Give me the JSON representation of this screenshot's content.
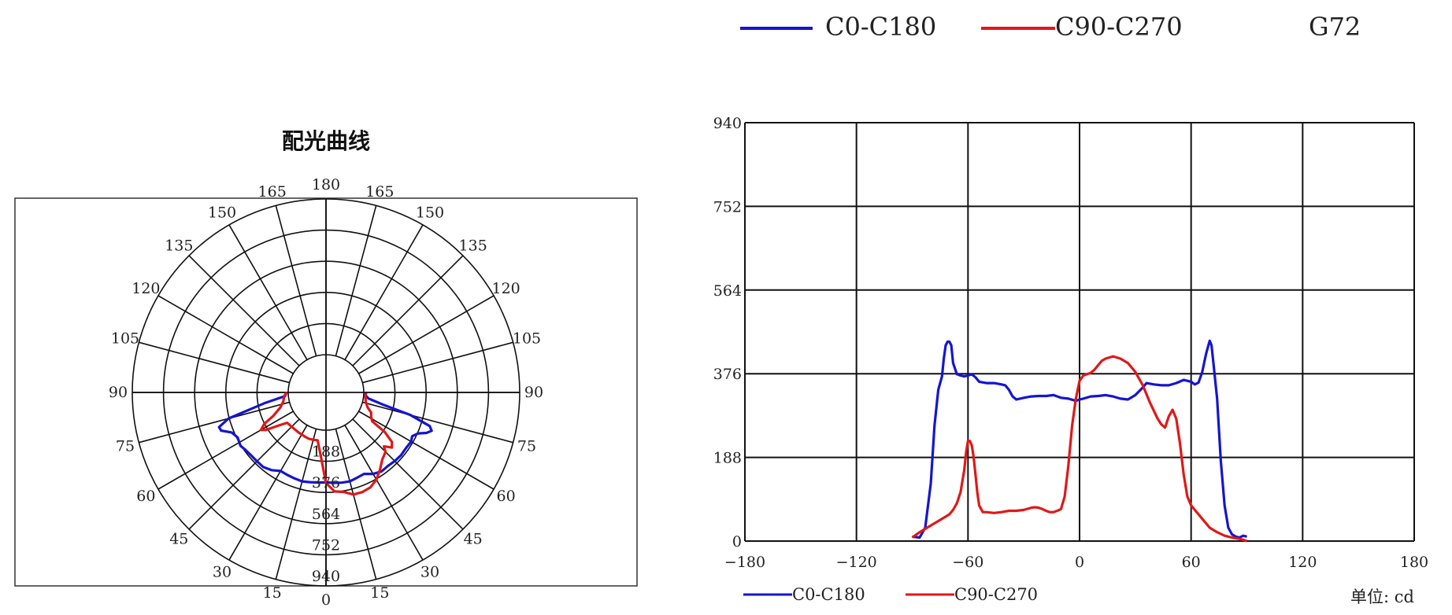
{
  "top_legend": {
    "entries": [
      {
        "label": "C0-C180",
        "color": "#1515d0"
      },
      {
        "label": "C90-C270",
        "color": "#e01818"
      }
    ],
    "model": "G72"
  },
  "unit_label": "单位: cd",
  "chart_data": [
    {
      "type": "polar",
      "title": "配光曲线",
      "angle_ticks": [
        0,
        15,
        30,
        45,
        60,
        75,
        90,
        105,
        120,
        135,
        150,
        165,
        180
      ],
      "radial_ticks": [
        188,
        376,
        564,
        752,
        940
      ],
      "rmax": 940,
      "series": [
        {
          "name": "C0-C180",
          "color": "#1515d0",
          "points": [
            [
              -90,
              10
            ],
            [
              -85,
              20
            ],
            [
              -80,
              150
            ],
            [
              -75,
              380
            ],
            [
              -72,
              450
            ],
            [
              -70,
              445
            ],
            [
              -67,
              390
            ],
            [
              -63,
              370
            ],
            [
              -58,
              380
            ],
            [
              -55,
              370
            ],
            [
              -50,
              362
            ],
            [
              -45,
              360
            ],
            [
              -40,
              360
            ],
            [
              -35,
              345
            ],
            [
              -30,
              320
            ],
            [
              -25,
              322
            ],
            [
              -20,
              325
            ],
            [
              -15,
              328
            ],
            [
              -10,
              322
            ],
            [
              -5,
              318
            ],
            [
              0,
              315
            ],
            [
              5,
              320
            ],
            [
              10,
              325
            ],
            [
              15,
              328
            ],
            [
              20,
              320
            ],
            [
              25,
              315
            ],
            [
              30,
              340
            ],
            [
              35,
              355
            ],
            [
              40,
              352
            ],
            [
              45,
              358
            ],
            [
              50,
              362
            ],
            [
              55,
              360
            ],
            [
              60,
              365
            ],
            [
              63,
              355
            ],
            [
              66,
              380
            ],
            [
              68,
              425
            ],
            [
              70,
              450
            ],
            [
              72,
              430
            ],
            [
              75,
              300
            ],
            [
              78,
              120
            ],
            [
              82,
              30
            ],
            [
              86,
              10
            ],
            [
              89,
              15
            ]
          ]
        },
        {
          "name": "C90-C270",
          "color": "#e01818",
          "points": [
            [
              -90,
              8
            ],
            [
              -85,
              25
            ],
            [
              -78,
              35
            ],
            [
              -72,
              60
            ],
            [
              -66,
              120
            ],
            [
              -63,
              190
            ],
            [
              -60,
              225
            ],
            [
              -58,
              200
            ],
            [
              -55,
              120
            ],
            [
              -52,
              70
            ],
            [
              -45,
              65
            ],
            [
              -35,
              65
            ],
            [
              -25,
              68
            ],
            [
              -20,
              70
            ],
            [
              -15,
              68
            ],
            [
              -10,
              65
            ],
            [
              -5,
              150
            ],
            [
              0,
              320
            ],
            [
              5,
              372
            ],
            [
              10,
              382
            ],
            [
              15,
              410
            ],
            [
              20,
              412
            ],
            [
              25,
              405
            ],
            [
              30,
              380
            ],
            [
              35,
              340
            ],
            [
              40,
              300
            ],
            [
              45,
              280
            ],
            [
              47,
              250
            ],
            [
              50,
              290
            ],
            [
              53,
              270
            ],
            [
              56,
              200
            ],
            [
              58,
              100
            ],
            [
              62,
              80
            ],
            [
              66,
              70
            ],
            [
              70,
              40
            ],
            [
              76,
              20
            ],
            [
              82,
              12
            ],
            [
              88,
              10
            ]
          ]
        }
      ]
    },
    {
      "type": "line",
      "x_ticks": [
        -180,
        -120,
        -60,
        0,
        60,
        120,
        180
      ],
      "y_ticks": [
        0,
        188,
        376,
        564,
        752,
        940
      ],
      "xlim": [
        -180,
        180
      ],
      "ylim": [
        0,
        940
      ],
      "grid": true,
      "legend": "bottom-left",
      "series": [
        {
          "name": "C0-C180",
          "color": "#1515d0",
          "x": [
            -90,
            -86,
            -83,
            -80,
            -78,
            -76,
            -74,
            -73,
            -72,
            -71,
            -70,
            -69,
            -68,
            -66,
            -64,
            -62,
            -60,
            -58,
            -56,
            -54,
            -50,
            -46,
            -42,
            -40,
            -38,
            -36,
            -34,
            -32,
            -30,
            -26,
            -22,
            -18,
            -14,
            -10,
            -6,
            -2,
            0,
            2,
            6,
            10,
            14,
            18,
            22,
            26,
            30,
            34,
            36,
            40,
            44,
            48,
            52,
            56,
            60,
            62,
            64,
            66,
            68,
            69,
            70,
            71,
            72,
            74,
            76,
            78,
            80,
            82,
            84,
            86,
            88,
            90
          ],
          "y": [
            10,
            8,
            30,
            130,
            260,
            340,
            370,
            410,
            440,
            448,
            448,
            440,
            400,
            375,
            372,
            370,
            372,
            375,
            368,
            358,
            355,
            355,
            352,
            350,
            340,
            325,
            318,
            320,
            322,
            325,
            326,
            326,
            328,
            322,
            320,
            315,
            318,
            320,
            325,
            326,
            328,
            325,
            320,
            318,
            328,
            345,
            355,
            352,
            350,
            350,
            355,
            362,
            358,
            352,
            356,
            380,
            420,
            435,
            450,
            440,
            400,
            320,
            180,
            80,
            30,
            15,
            10,
            8,
            12,
            10
          ]
        },
        {
          "name": "C90-C270",
          "color": "#e01818",
          "x": [
            -90,
            -86,
            -82,
            -78,
            -74,
            -70,
            -68,
            -66,
            -64,
            -62,
            -61,
            -60,
            -59,
            -58,
            -57,
            -56,
            -55,
            -54,
            -52,
            -50,
            -46,
            -42,
            -38,
            -34,
            -30,
            -26,
            -24,
            -22,
            -20,
            -18,
            -16,
            -14,
            -12,
            -10,
            -8,
            -6,
            -4,
            -2,
            0,
            2,
            4,
            6,
            8,
            10,
            12,
            14,
            18,
            22,
            26,
            30,
            34,
            38,
            42,
            44,
            46,
            48,
            50,
            52,
            54,
            56,
            58,
            60,
            62,
            64,
            66,
            70,
            74,
            78,
            82,
            86,
            88,
            90
          ],
          "y": [
            8,
            20,
            30,
            40,
            50,
            60,
            70,
            85,
            110,
            160,
            200,
            225,
            225,
            215,
            190,
            150,
            110,
            80,
            65,
            65,
            63,
            65,
            68,
            68,
            70,
            75,
            76,
            75,
            72,
            68,
            65,
            65,
            68,
            72,
            100,
            170,
            260,
            320,
            360,
            372,
            375,
            378,
            385,
            395,
            405,
            410,
            415,
            410,
            400,
            380,
            350,
            310,
            275,
            262,
            255,
            280,
            295,
            275,
            220,
            150,
            100,
            80,
            70,
            60,
            50,
            30,
            20,
            12,
            8,
            5,
            3,
            0
          ]
        }
      ]
    }
  ]
}
